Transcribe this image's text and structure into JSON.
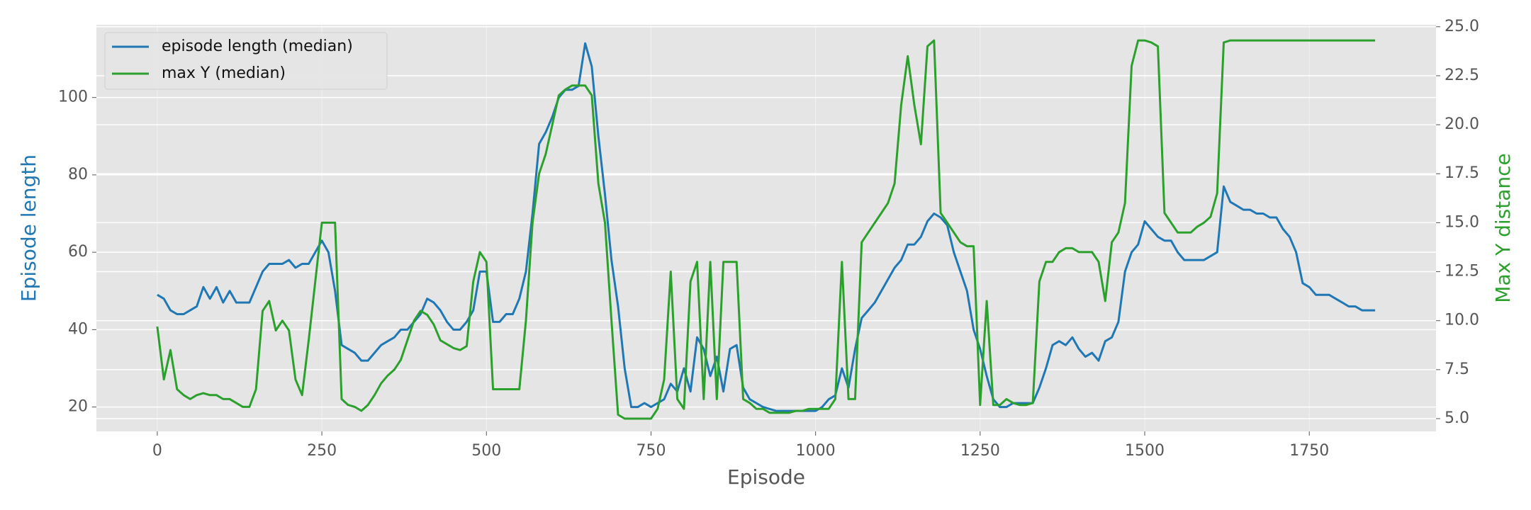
{
  "chart_data": {
    "type": "line",
    "xlabel": "Episode",
    "ylabel": "Episode length",
    "y2label": "Max Y distance",
    "x": [
      0,
      10,
      20,
      30,
      40,
      50,
      60,
      70,
      80,
      90,
      100,
      110,
      120,
      130,
      140,
      150,
      160,
      170,
      180,
      190,
      200,
      210,
      220,
      230,
      240,
      250,
      260,
      270,
      280,
      290,
      300,
      310,
      320,
      330,
      340,
      350,
      360,
      370,
      380,
      390,
      400,
      410,
      420,
      430,
      440,
      450,
      460,
      470,
      480,
      490,
      500,
      510,
      520,
      530,
      540,
      550,
      560,
      570,
      580,
      590,
      600,
      610,
      620,
      630,
      640,
      650,
      660,
      670,
      680,
      690,
      700,
      710,
      720,
      730,
      740,
      750,
      760,
      770,
      780,
      790,
      800,
      810,
      820,
      830,
      840,
      850,
      860,
      870,
      880,
      890,
      900,
      910,
      920,
      930,
      940,
      950,
      960,
      970,
      980,
      990,
      1000,
      1010,
      1020,
      1030,
      1040,
      1050,
      1060,
      1070,
      1080,
      1090,
      1100,
      1110,
      1120,
      1130,
      1140,
      1150,
      1160,
      1170,
      1180,
      1190,
      1200,
      1210,
      1220,
      1230,
      1240,
      1250,
      1260,
      1270,
      1280,
      1290,
      1300,
      1310,
      1320,
      1330,
      1340,
      1350,
      1360,
      1370,
      1380,
      1390,
      1400,
      1410,
      1420,
      1430,
      1440,
      1450,
      1460,
      1470,
      1480,
      1490,
      1500,
      1510,
      1520,
      1530,
      1540,
      1550,
      1560,
      1570,
      1580,
      1590,
      1600,
      1610,
      1620,
      1630,
      1640,
      1650,
      1660,
      1670,
      1680,
      1690,
      1700,
      1710,
      1720,
      1730,
      1740,
      1750,
      1760,
      1770,
      1780,
      1790,
      1800,
      1810,
      1820,
      1830,
      1840,
      1850
    ],
    "series": [
      {
        "name": "episode length (median)",
        "color": "#1f77b4",
        "axis": "y",
        "values": [
          49,
          48,
          45,
          44,
          44,
          45,
          46,
          51,
          48,
          51,
          47,
          50,
          47,
          47,
          47,
          51,
          55,
          57,
          57,
          57,
          58,
          56,
          57,
          57,
          60,
          63,
          60,
          50,
          36,
          35,
          34,
          32,
          32,
          34,
          36,
          37,
          38,
          40,
          40,
          42,
          44,
          48,
          47,
          45,
          42,
          40,
          40,
          42,
          45,
          55,
          55,
          42,
          42,
          44,
          44,
          48,
          55,
          70,
          88,
          91,
          95,
          100,
          102,
          102,
          103,
          114,
          108,
          90,
          75,
          58,
          46,
          30,
          20,
          20,
          21,
          20,
          21,
          22,
          26,
          24,
          30,
          24,
          38,
          35,
          28,
          33,
          24,
          35,
          36,
          25,
          22,
          21,
          20,
          19.5,
          19,
          19,
          19,
          19,
          19,
          19,
          19,
          20,
          22,
          23,
          30,
          25,
          35,
          43,
          45,
          47,
          50,
          53,
          56,
          58,
          62,
          62,
          64,
          68,
          70,
          69,
          67,
          60,
          55,
          50,
          40,
          35,
          28,
          22,
          20,
          20,
          21,
          21,
          21,
          21,
          25,
          30,
          36,
          37,
          36,
          38,
          35,
          33,
          34,
          32,
          37,
          38,
          42,
          55,
          60,
          62,
          68,
          66,
          64,
          63,
          63,
          60,
          58,
          58,
          58,
          58,
          59,
          60,
          77,
          73,
          72,
          71,
          71,
          70,
          70,
          69,
          69,
          66,
          64,
          60,
          52,
          51,
          49,
          49,
          49,
          48,
          47,
          46,
          46,
          45,
          45,
          45
        ]
      },
      {
        "name": "max Y (median)",
        "color": "#2ca02c",
        "axis": "y2",
        "values": [
          9.7,
          7,
          8.5,
          6.5,
          6.2,
          6,
          6.2,
          6.3,
          6.2,
          6.2,
          6,
          6,
          5.8,
          5.6,
          5.6,
          6.5,
          10.5,
          11,
          9.5,
          10,
          9.5,
          7,
          6.2,
          9,
          12,
          15,
          15,
          15,
          6,
          5.7,
          5.6,
          5.4,
          5.7,
          6.2,
          6.8,
          7.2,
          7.5,
          8,
          9,
          10,
          10.5,
          10.3,
          9.8,
          9,
          8.8,
          8.6,
          8.5,
          8.7,
          12,
          13.5,
          13,
          6.5,
          6.5,
          6.5,
          6.5,
          6.5,
          10,
          15,
          17.5,
          18.5,
          20,
          21.5,
          21.8,
          22,
          22,
          22,
          21.5,
          17,
          15,
          10,
          5.2,
          5,
          5,
          5,
          5,
          5,
          5.5,
          7,
          12.5,
          6,
          5.5,
          12,
          13,
          6,
          13,
          6,
          13,
          13,
          13,
          6,
          5.8,
          5.5,
          5.5,
          5.3,
          5.3,
          5.3,
          5.3,
          5.4,
          5.4,
          5.5,
          5.5,
          5.5,
          5.5,
          6,
          13,
          6,
          6,
          14,
          14.5,
          15,
          15.5,
          16,
          17,
          21,
          23.5,
          21,
          19,
          24,
          24.3,
          15.5,
          15,
          14.5,
          14,
          13.8,
          13.8,
          5.7,
          11,
          5.7,
          5.7,
          6,
          5.8,
          5.7,
          5.7,
          5.8,
          12,
          13,
          13,
          13.5,
          13.7,
          13.7,
          13.5,
          13.5,
          13.5,
          13,
          11,
          14,
          14.5,
          16,
          23,
          24.3,
          24.3,
          24.2,
          24,
          15.5,
          15,
          14.5,
          14.5,
          14.5,
          14.8,
          15,
          15.3,
          16.5,
          24.2,
          24.3,
          24.3,
          24.3,
          24.3,
          24.3,
          24.3,
          24.3,
          24.3,
          24.3,
          24.3,
          24.3,
          24.3,
          24.3,
          24.3,
          24.3,
          24.3,
          24.3,
          24.3,
          24.3,
          24.3,
          24.3,
          24.3,
          24.3
        ]
      }
    ],
    "xlim": [
      -92.5,
      1942.5
    ],
    "xticks": [
      0,
      250,
      500,
      750,
      1000,
      1250,
      1500,
      1750
    ],
    "ylim": [
      13.7,
      118.8
    ],
    "yticks": [
      20,
      40,
      60,
      80,
      100
    ],
    "y2lim": [
      4.35,
      25.1
    ],
    "y2ticks": [
      {
        "value": 5,
        "label": "5.0"
      },
      7.5,
      {
        "value": 10,
        "label": "10.0"
      },
      12.5,
      {
        "value": 15,
        "label": "15.0"
      },
      17.5,
      {
        "value": 20,
        "label": "20.0"
      },
      22.5,
      {
        "value": 25,
        "label": "25.0"
      }
    ],
    "grid": true,
    "legend": "upper left"
  }
}
